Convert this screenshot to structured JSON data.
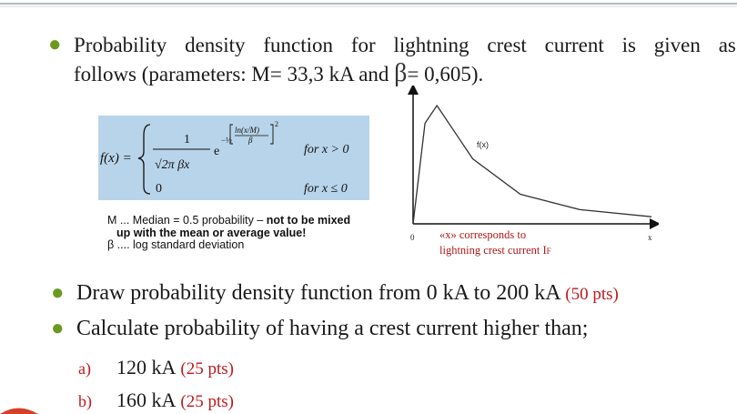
{
  "bullet1": {
    "line1_words": [
      "Probability",
      "density",
      "function",
      "for",
      "lightning",
      "crest",
      "current",
      "is",
      "given",
      "as"
    ],
    "line2_prefix": "follows (parameters: M= 33,3 kA and ",
    "beta_symbol": "β",
    "line2_suffix": "= 0,605)."
  },
  "formula": {
    "lhs": "f(x) =",
    "numerator": "1",
    "denominator": "√2π βx",
    "exp_base": "e",
    "exp_coef": "−½",
    "exp_num": "ln(x/M)",
    "exp_den": "β",
    "exp_pow": "2",
    "case1": "for x > 0",
    "zero": "0",
    "case2": "for x ≤ 0"
  },
  "notes": {
    "line1_normal": "M ... Median = 0.5 probability – ",
    "line1_bold": "not to be mixed",
    "line2_bold": "up with the mean or average value!",
    "line3": "β .... log standard deviation"
  },
  "chart": {
    "curve_label": "f(x)",
    "origin_label": "0",
    "x_label": "x",
    "note_line1": "«x» corresponds to",
    "note_line2": "lightning crest current I",
    "note_sub": "F"
  },
  "chart_data": {
    "type": "line",
    "title": "",
    "series": [
      {
        "name": "f(x)",
        "x": [
          0,
          0.05,
          0.1,
          0.25,
          0.45,
          0.7,
          1.0
        ],
        "values": [
          0,
          0.85,
          1.0,
          0.55,
          0.25,
          0.12,
          0.06
        ]
      }
    ],
    "xlabel": "x",
    "ylabel": ""
  },
  "bullet2": {
    "text": "Draw probability density function from 0 kA to 200 kA",
    "pts": "(50 pts)"
  },
  "bullet3": {
    "text": "Calculate probability of having a crest current higher than;"
  },
  "items": [
    {
      "label": "a)",
      "value": "120 kA",
      "pts": "(25 pts)"
    },
    {
      "label": "b)",
      "value": "160 kA",
      "pts": "(25 pts)"
    }
  ],
  "colors": {
    "bullet": "#6b9a1e",
    "accent_red": "#c0181e",
    "formula_bg": "#b8d4ea",
    "top_line": "#9aa3ae"
  }
}
